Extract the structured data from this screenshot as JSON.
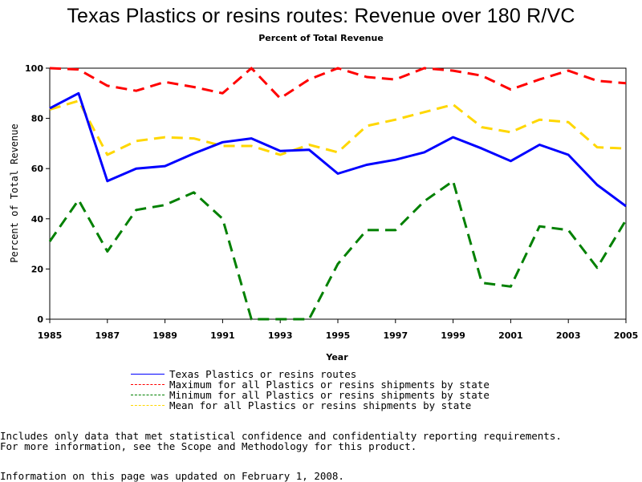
{
  "chart_data": {
    "type": "line",
    "title": "Texas Plastics or resins routes: Revenue over 180 R/VC",
    "subtitle": "Percent of Total Revenue",
    "xlabel": "Year",
    "ylabel": "Percent of Total Revenue",
    "xlim": [
      1985,
      2005
    ],
    "ylim": [
      0,
      100
    ],
    "x": [
      1985,
      1986,
      1987,
      1988,
      1989,
      1990,
      1991,
      1992,
      1993,
      1994,
      1995,
      1996,
      1997,
      1998,
      1999,
      2000,
      2001,
      2002,
      2003,
      2004,
      2005
    ],
    "x_ticks": [
      "1985",
      "1987",
      "1989",
      "1991",
      "1993",
      "1995",
      "1997",
      "1999",
      "2001",
      "2003",
      "2005"
    ],
    "y_ticks": [
      "0",
      "20",
      "40",
      "60",
      "80",
      "100"
    ],
    "grid": false,
    "legend_position": "bottom",
    "series": [
      {
        "name": "Texas Plastics or resins routes",
        "color": "#0000ff",
        "dash": "solid",
        "values": [
          84,
          90,
          55,
          60,
          61,
          66,
          70.5,
          72,
          67,
          67.5,
          58,
          61.5,
          63.5,
          66.5,
          72.5,
          68,
          63,
          69.5,
          65.5,
          53.5,
          45
        ]
      },
      {
        "name": "Maximum for all Plastics or resins shipments by state",
        "color": "#ff0000",
        "dash": "dashed",
        "values": [
          100,
          99.5,
          93,
          91,
          94.5,
          92.5,
          90,
          100,
          88,
          95.5,
          100,
          96.5,
          95.5,
          100,
          99,
          97,
          91.5,
          95.5,
          99,
          95,
          94
        ]
      },
      {
        "name": "Minimum for all Plastics or resins shipments by state",
        "color": "#008000",
        "dash": "dashed",
        "values": [
          31,
          47.5,
          27,
          43.5,
          45.5,
          50.5,
          40,
          0,
          0,
          0,
          22,
          35.5,
          35.5,
          47,
          55,
          14.5,
          13,
          37,
          35.5,
          20.5,
          39.5
        ]
      },
      {
        "name": "Mean for all Plastics or resins shipments by state",
        "color": "#ffd700",
        "dash": "dashed",
        "values": [
          83.5,
          87,
          65.5,
          71,
          72.5,
          72,
          69,
          69,
          65.5,
          69.5,
          66.5,
          77,
          79.5,
          82.5,
          85.5,
          76.5,
          74.5,
          79.5,
          78.5,
          68.5,
          68
        ]
      }
    ]
  },
  "footer": {
    "note_line1": "Includes only data that met statistical confidence and confidentialty reporting requirements.",
    "note_line2": "For more information, see the Scope and Methodology for this product.",
    "updated": "Information on this page was updated on February 1, 2008."
  }
}
